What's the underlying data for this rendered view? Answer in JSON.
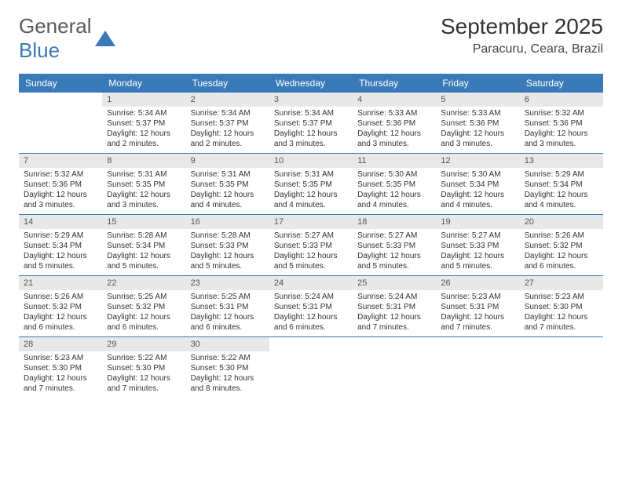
{
  "logo": {
    "text1": "General",
    "text2": "Blue"
  },
  "title": "September 2025",
  "location": "Paracuru, Ceara, Brazil",
  "colors": {
    "header_bg": "#3a7ab8",
    "border": "#3a7ab8",
    "daynum_bg": "#e8e8e8"
  },
  "day_headers": [
    "Sunday",
    "Monday",
    "Tuesday",
    "Wednesday",
    "Thursday",
    "Friday",
    "Saturday"
  ],
  "weeks": [
    [
      {
        "n": "",
        "sr": "",
        "ss": "",
        "dl": ""
      },
      {
        "n": "1",
        "sr": "Sunrise: 5:34 AM",
        "ss": "Sunset: 5:37 PM",
        "dl": "Daylight: 12 hours and 2 minutes."
      },
      {
        "n": "2",
        "sr": "Sunrise: 5:34 AM",
        "ss": "Sunset: 5:37 PM",
        "dl": "Daylight: 12 hours and 2 minutes."
      },
      {
        "n": "3",
        "sr": "Sunrise: 5:34 AM",
        "ss": "Sunset: 5:37 PM",
        "dl": "Daylight: 12 hours and 3 minutes."
      },
      {
        "n": "4",
        "sr": "Sunrise: 5:33 AM",
        "ss": "Sunset: 5:36 PM",
        "dl": "Daylight: 12 hours and 3 minutes."
      },
      {
        "n": "5",
        "sr": "Sunrise: 5:33 AM",
        "ss": "Sunset: 5:36 PM",
        "dl": "Daylight: 12 hours and 3 minutes."
      },
      {
        "n": "6",
        "sr": "Sunrise: 5:32 AM",
        "ss": "Sunset: 5:36 PM",
        "dl": "Daylight: 12 hours and 3 minutes."
      }
    ],
    [
      {
        "n": "7",
        "sr": "Sunrise: 5:32 AM",
        "ss": "Sunset: 5:36 PM",
        "dl": "Daylight: 12 hours and 3 minutes."
      },
      {
        "n": "8",
        "sr": "Sunrise: 5:31 AM",
        "ss": "Sunset: 5:35 PM",
        "dl": "Daylight: 12 hours and 3 minutes."
      },
      {
        "n": "9",
        "sr": "Sunrise: 5:31 AM",
        "ss": "Sunset: 5:35 PM",
        "dl": "Daylight: 12 hours and 4 minutes."
      },
      {
        "n": "10",
        "sr": "Sunrise: 5:31 AM",
        "ss": "Sunset: 5:35 PM",
        "dl": "Daylight: 12 hours and 4 minutes."
      },
      {
        "n": "11",
        "sr": "Sunrise: 5:30 AM",
        "ss": "Sunset: 5:35 PM",
        "dl": "Daylight: 12 hours and 4 minutes."
      },
      {
        "n": "12",
        "sr": "Sunrise: 5:30 AM",
        "ss": "Sunset: 5:34 PM",
        "dl": "Daylight: 12 hours and 4 minutes."
      },
      {
        "n": "13",
        "sr": "Sunrise: 5:29 AM",
        "ss": "Sunset: 5:34 PM",
        "dl": "Daylight: 12 hours and 4 minutes."
      }
    ],
    [
      {
        "n": "14",
        "sr": "Sunrise: 5:29 AM",
        "ss": "Sunset: 5:34 PM",
        "dl": "Daylight: 12 hours and 5 minutes."
      },
      {
        "n": "15",
        "sr": "Sunrise: 5:28 AM",
        "ss": "Sunset: 5:34 PM",
        "dl": "Daylight: 12 hours and 5 minutes."
      },
      {
        "n": "16",
        "sr": "Sunrise: 5:28 AM",
        "ss": "Sunset: 5:33 PM",
        "dl": "Daylight: 12 hours and 5 minutes."
      },
      {
        "n": "17",
        "sr": "Sunrise: 5:27 AM",
        "ss": "Sunset: 5:33 PM",
        "dl": "Daylight: 12 hours and 5 minutes."
      },
      {
        "n": "18",
        "sr": "Sunrise: 5:27 AM",
        "ss": "Sunset: 5:33 PM",
        "dl": "Daylight: 12 hours and 5 minutes."
      },
      {
        "n": "19",
        "sr": "Sunrise: 5:27 AM",
        "ss": "Sunset: 5:33 PM",
        "dl": "Daylight: 12 hours and 5 minutes."
      },
      {
        "n": "20",
        "sr": "Sunrise: 5:26 AM",
        "ss": "Sunset: 5:32 PM",
        "dl": "Daylight: 12 hours and 6 minutes."
      }
    ],
    [
      {
        "n": "21",
        "sr": "Sunrise: 5:26 AM",
        "ss": "Sunset: 5:32 PM",
        "dl": "Daylight: 12 hours and 6 minutes."
      },
      {
        "n": "22",
        "sr": "Sunrise: 5:25 AM",
        "ss": "Sunset: 5:32 PM",
        "dl": "Daylight: 12 hours and 6 minutes."
      },
      {
        "n": "23",
        "sr": "Sunrise: 5:25 AM",
        "ss": "Sunset: 5:31 PM",
        "dl": "Daylight: 12 hours and 6 minutes."
      },
      {
        "n": "24",
        "sr": "Sunrise: 5:24 AM",
        "ss": "Sunset: 5:31 PM",
        "dl": "Daylight: 12 hours and 6 minutes."
      },
      {
        "n": "25",
        "sr": "Sunrise: 5:24 AM",
        "ss": "Sunset: 5:31 PM",
        "dl": "Daylight: 12 hours and 7 minutes."
      },
      {
        "n": "26",
        "sr": "Sunrise: 5:23 AM",
        "ss": "Sunset: 5:31 PM",
        "dl": "Daylight: 12 hours and 7 minutes."
      },
      {
        "n": "27",
        "sr": "Sunrise: 5:23 AM",
        "ss": "Sunset: 5:30 PM",
        "dl": "Daylight: 12 hours and 7 minutes."
      }
    ],
    [
      {
        "n": "28",
        "sr": "Sunrise: 5:23 AM",
        "ss": "Sunset: 5:30 PM",
        "dl": "Daylight: 12 hours and 7 minutes."
      },
      {
        "n": "29",
        "sr": "Sunrise: 5:22 AM",
        "ss": "Sunset: 5:30 PM",
        "dl": "Daylight: 12 hours and 7 minutes."
      },
      {
        "n": "30",
        "sr": "Sunrise: 5:22 AM",
        "ss": "Sunset: 5:30 PM",
        "dl": "Daylight: 12 hours and 8 minutes."
      },
      {
        "n": "",
        "sr": "",
        "ss": "",
        "dl": ""
      },
      {
        "n": "",
        "sr": "",
        "ss": "",
        "dl": ""
      },
      {
        "n": "",
        "sr": "",
        "ss": "",
        "dl": ""
      },
      {
        "n": "",
        "sr": "",
        "ss": "",
        "dl": ""
      }
    ]
  ]
}
